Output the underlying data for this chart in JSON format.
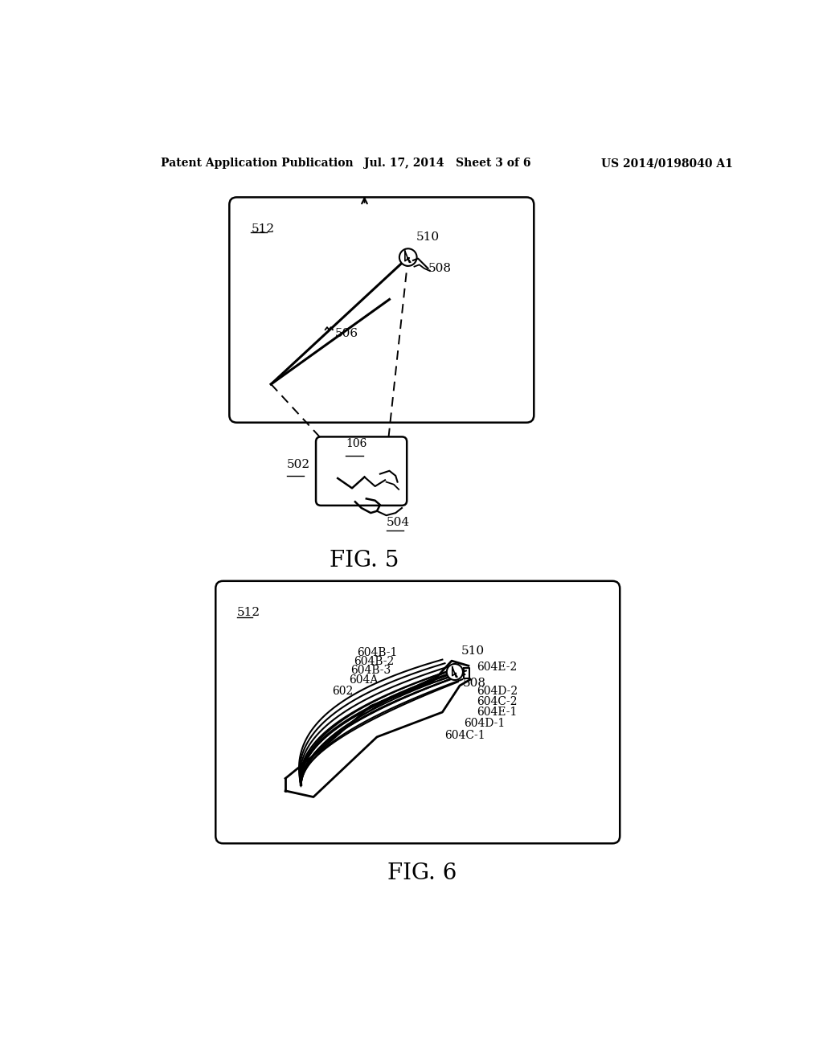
{
  "header_left": "Patent Application Publication",
  "header_center": "Jul. 17, 2014   Sheet 3 of 6",
  "header_right": "US 2014/0198040 A1",
  "fig5_label": "FIG. 5",
  "fig6_label": "FIG. 6",
  "background_color": "#ffffff",
  "line_color": "#000000"
}
